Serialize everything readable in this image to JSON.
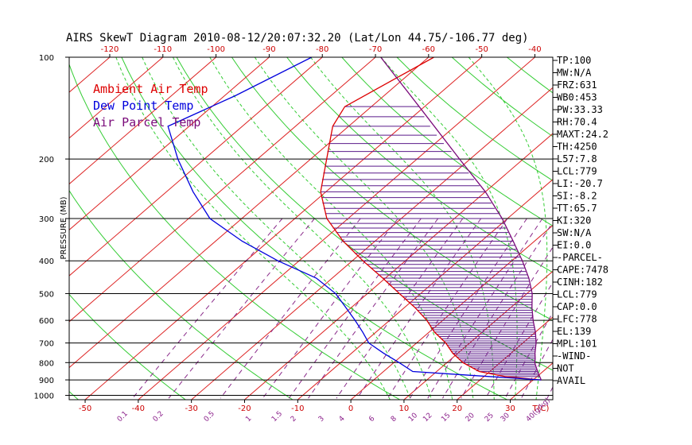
{
  "chart_data": {
    "type": "line",
    "title": "AIRS SkewT Diagram 2010-08-12/20:07:32.20 (Lat/Lon 44.75/-106.77 deg)",
    "ylabel": "PRESSURE (MB)",
    "y_scale": "log",
    "ylim": [
      1030,
      100
    ],
    "y_ticks": [
      100,
      200,
      300,
      400,
      500,
      600,
      700,
      800,
      900,
      1000
    ],
    "temp_range_at_bottom": [
      -53,
      38
    ],
    "skew_degC_per_ln_pressure": 32,
    "x_top_ticks": [
      -120,
      -110,
      -100,
      -90,
      -80,
      -70,
      -60,
      -50,
      -40
    ],
    "x_bottom_ticks": [
      -50,
      -40,
      -30,
      -20,
      -10,
      0,
      10,
      20,
      30
    ],
    "x_bottom_unit": "T(C)",
    "mixing_ratio_ticks": [
      "0.1",
      "0.2",
      "0.5",
      "1",
      "1.5",
      "2",
      "3",
      "4",
      "6",
      "8",
      "10",
      "12",
      "15",
      "20",
      "25",
      "30",
      "40(g/kg)"
    ],
    "mixing_ratio_values": [
      0.1,
      0.2,
      0.5,
      1,
      1.5,
      2,
      3,
      4,
      6,
      8,
      10,
      12,
      15,
      20,
      25,
      30,
      40
    ],
    "isotherms_degC": [
      -160,
      -150,
      -140,
      -130,
      -120,
      -110,
      -100,
      -90,
      -80,
      -70,
      -60,
      -50,
      -40,
      -30,
      -20,
      -10,
      0,
      10,
      20,
      30,
      40
    ],
    "dry_adiabats_K": [
      220,
      240,
      260,
      280,
      300,
      320,
      340,
      360,
      380,
      400,
      420,
      440,
      460,
      480,
      500,
      520,
      540,
      560
    ],
    "moist_adiabats_degC": [
      6,
      10,
      14,
      18,
      22,
      26,
      30,
      34,
      38,
      42,
      46
    ],
    "legend": [
      {
        "name": "Ambient Air Temp",
        "color": "#dd0000"
      },
      {
        "name": "Dew Point Temp",
        "color": "#0000dd"
      },
      {
        "name": "Air Parcel Temp",
        "color": "#7a0a7a"
      }
    ],
    "legend_position": "top-left",
    "grid": true,
    "series": [
      {
        "name": "Ambient Air Temp",
        "color": "#dd0000",
        "points": [
          {
            "p": 100,
            "t": -59
          },
          {
            "p": 140,
            "t": -65
          },
          {
            "p": 160,
            "t": -63
          },
          {
            "p": 200,
            "t": -57
          },
          {
            "p": 250,
            "t": -51
          },
          {
            "p": 300,
            "t": -44
          },
          {
            "p": 350,
            "t": -36
          },
          {
            "p": 400,
            "t": -28
          },
          {
            "p": 450,
            "t": -20.5
          },
          {
            "p": 500,
            "t": -14
          },
          {
            "p": 550,
            "t": -8
          },
          {
            "p": 600,
            "t": -3
          },
          {
            "p": 650,
            "t": 1
          },
          {
            "p": 700,
            "t": 5.5
          },
          {
            "p": 750,
            "t": 9
          },
          {
            "p": 800,
            "t": 13
          },
          {
            "p": 850,
            "t": 18
          },
          {
            "p": 880,
            "t": 24
          },
          {
            "p": 900,
            "t": 31.5
          }
        ]
      },
      {
        "name": "Dew Point Temp",
        "color": "#0000dd",
        "points": [
          {
            "p": 100,
            "t": -82
          },
          {
            "p": 130,
            "t": -88
          },
          {
            "p": 160,
            "t": -94
          },
          {
            "p": 200,
            "t": -85
          },
          {
            "p": 250,
            "t": -75
          },
          {
            "p": 300,
            "t": -66
          },
          {
            "p": 350,
            "t": -55
          },
          {
            "p": 400,
            "t": -44
          },
          {
            "p": 450,
            "t": -33
          },
          {
            "p": 500,
            "t": -26
          },
          {
            "p": 550,
            "t": -21
          },
          {
            "p": 600,
            "t": -16.5
          },
          {
            "p": 650,
            "t": -12.5
          },
          {
            "p": 700,
            "t": -9
          },
          {
            "p": 750,
            "t": -4
          },
          {
            "p": 800,
            "t": 1
          },
          {
            "p": 850,
            "t": 5.5
          },
          {
            "p": 870,
            "t": 16
          },
          {
            "p": 900,
            "t": 31.5
          }
        ]
      },
      {
        "name": "Air Parcel Temp",
        "color": "#7a0a7a",
        "points": [
          {
            "p": 100,
            "t": -69
          },
          {
            "p": 140,
            "t": -51
          },
          {
            "p": 200,
            "t": -32
          },
          {
            "p": 250,
            "t": -20
          },
          {
            "p": 300,
            "t": -11
          },
          {
            "p": 350,
            "t": -4
          },
          {
            "p": 400,
            "t": 2
          },
          {
            "p": 450,
            "t": 7
          },
          {
            "p": 500,
            "t": 11
          },
          {
            "p": 550,
            "t": 14
          },
          {
            "p": 600,
            "t": 17
          },
          {
            "p": 650,
            "t": 20
          },
          {
            "p": 700,
            "t": 22.5
          },
          {
            "p": 750,
            "t": 24.5
          },
          {
            "p": 780,
            "t": 25.8
          },
          {
            "p": 800,
            "t": 26.5
          },
          {
            "p": 850,
            "t": 29
          },
          {
            "p": 900,
            "t": 31.5
          }
        ]
      }
    ]
  },
  "indices": [
    "TP:100",
    "MW:N/A",
    "FRZ:631",
    "WB0:453",
    "PW:33.33",
    "RH:70.4",
    "MAXT:24.2",
    "TH:4250",
    "L57:7.8",
    "LCL:779",
    "LI:-20.7",
    "SI:-8.2",
    "TT:65.7",
    "KI:320",
    "SW:N/A",
    "EI:0.0",
    "-PARCEL-",
    "CAPE:7478",
    "CINH:182",
    "LCL:779",
    "CAP:0.0",
    "LFC:778",
    "EL:139",
    "MPL:101",
    "-WIND-",
    "NOT",
    "AVAIL"
  ]
}
